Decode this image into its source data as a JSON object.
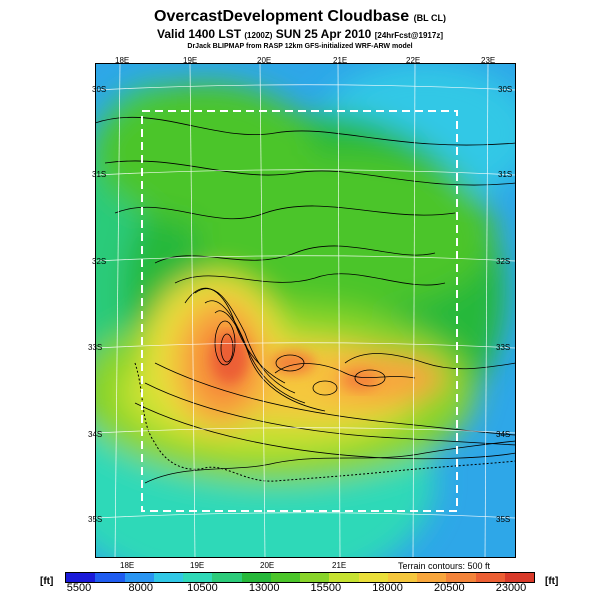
{
  "header": {
    "title": "OvercastDevelopment Cloudbase",
    "title_tag": "(BL CL)",
    "valid_line": "Valid 1400 LST",
    "valid_time": "(1200Z)",
    "valid_date": "SUN 25 Apr 2010",
    "forecast": "[24hrFcst@1917z]",
    "credit": "DrJack BLIPMAP from RASP 12km GFS-initialized WRF-ARW model"
  },
  "map": {
    "lon_top": [
      "18E",
      "19E",
      "20E",
      "21E",
      "22E",
      "23E"
    ],
    "lon_bottom": [
      "18E",
      "19E",
      "20E",
      "21E"
    ],
    "lat_left": [
      "30S",
      "31S",
      "32S",
      "33S",
      "34S",
      "35S"
    ],
    "lat_right": [
      "30S",
      "31S",
      "32S",
      "33S",
      "34S",
      "35S"
    ],
    "terrain_note": "Terrain contours: 500 ft"
  },
  "colorbar": {
    "unit_left": "[ft]",
    "unit_right": "[ft]",
    "ticks": [
      "5500",
      "8000",
      "10500",
      "13000",
      "15500",
      "18000",
      "20500",
      "23000"
    ],
    "colors": [
      "#1a1ad9",
      "#1f5cf0",
      "#2a95f2",
      "#31c8e6",
      "#2fd9b8",
      "#2ccb7a",
      "#26b83a",
      "#4bc52a",
      "#88d42a",
      "#c6e231",
      "#eadf3a",
      "#f5c73d",
      "#f8a63c",
      "#f4843a",
      "#ec5f34",
      "#d93a2a"
    ]
  }
}
